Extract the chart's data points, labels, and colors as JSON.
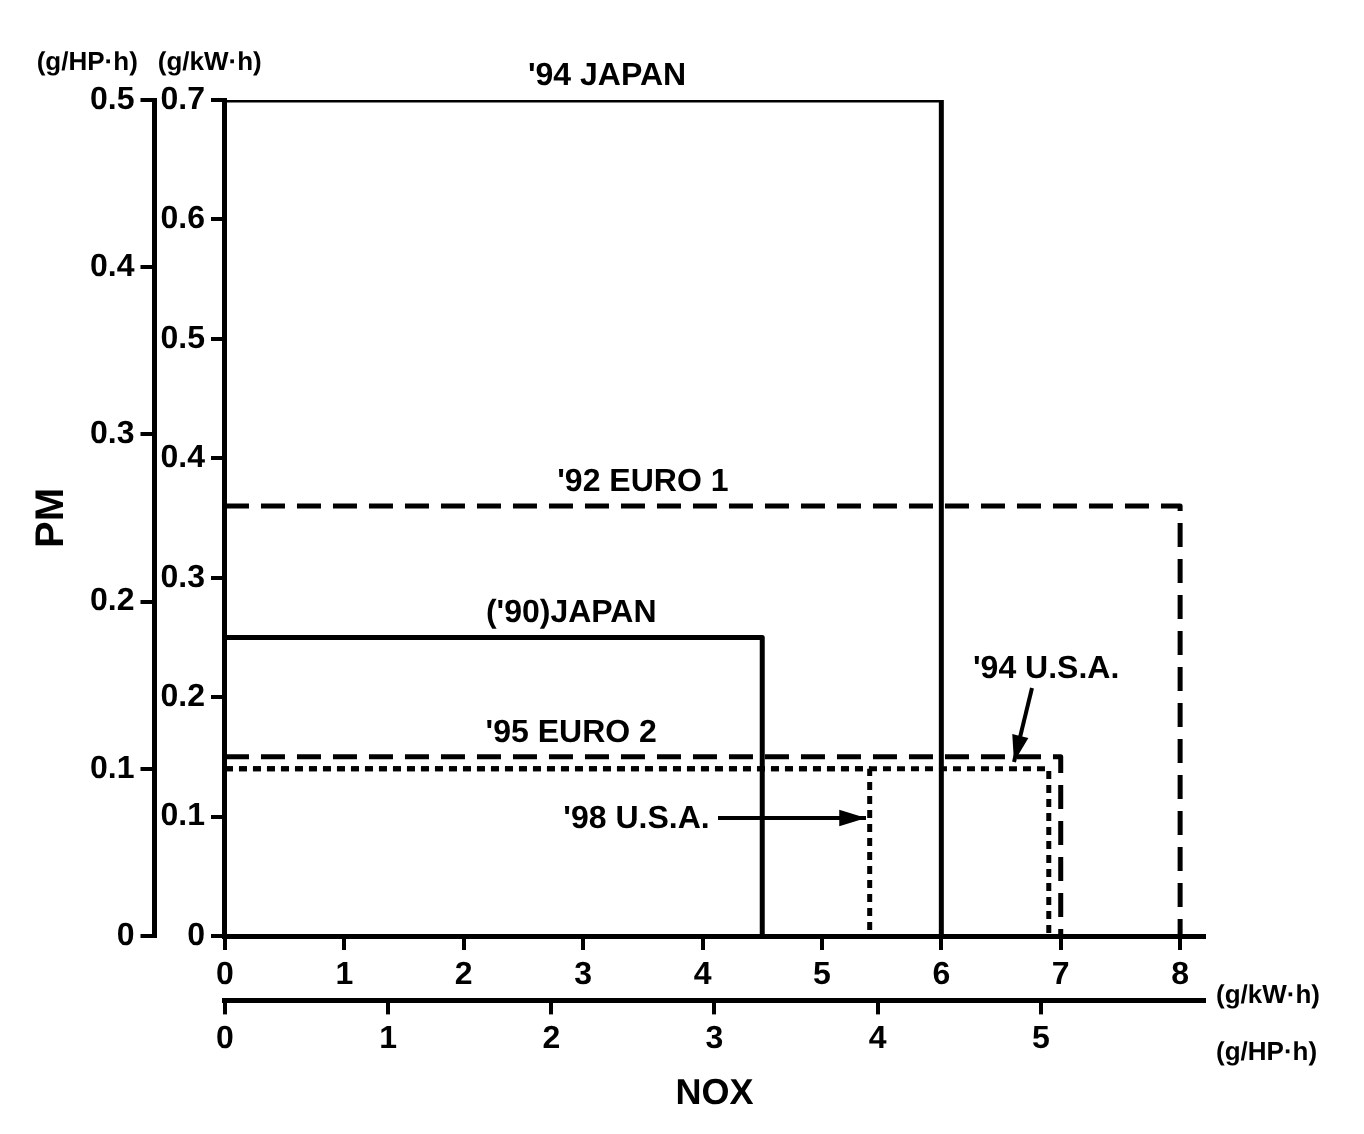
{
  "chart_data": {
    "type": "line",
    "xlabel": "NOX",
    "y2label": "PM",
    "xlim": [
      0,
      8.2
    ],
    "xticks": [
      0,
      1,
      2,
      3,
      4,
      5,
      6,
      7,
      8
    ],
    "x2lim": [
      0,
      6.0
    ],
    "x2ticks": [
      0,
      1,
      2,
      3,
      4,
      5
    ],
    "ylim": [
      0,
      0.7
    ],
    "yticks": [
      0,
      0.1,
      0.2,
      0.3,
      0.4,
      0.5,
      0.6,
      0.7
    ],
    "y2lim": [
      0,
      0.5
    ],
    "y2ticks": [
      0,
      0.1,
      0.2,
      0.3,
      0.4,
      0.5
    ],
    "marker": "none",
    "grid": false,
    "legend": false,
    "series": [
      {
        "color": "#000000",
        "line_style": "solid",
        "x": [
          0,
          6.0,
          6.0
        ],
        "values": [
          0.7,
          0.7,
          0
        ]
      },
      {
        "color": "#000000",
        "line_style": "dashed",
        "x": [
          0,
          8.0,
          8.0
        ],
        "values": [
          0.36,
          0.36,
          0
        ]
      },
      {
        "color": "#000000",
        "line_style": "solid",
        "x": [
          0,
          4.5,
          4.5
        ],
        "values": [
          0.25,
          0.25,
          0
        ]
      },
      {
        "color": "#000000",
        "line_style": "dashed",
        "x": [
          0,
          7.0,
          7.0
        ],
        "values": [
          0.15,
          0.15,
          0
        ]
      },
      {
        "color": "#000000",
        "line_style": "dotted",
        "x": [
          0,
          5.4,
          5.4
        ],
        "values": [
          0.14,
          0.14,
          0
        ]
      },
      {
        "color": "#000000",
        "line_style": "dotted",
        "x": [
          0,
          6.9,
          6.9
        ],
        "values": [
          0.14,
          0.14,
          0
        ]
      }
    ],
    "annotations": [
      {
        "text": "'94 JAPAN",
        "x": 3.2,
        "y": 0.7
      },
      {
        "text": "'92 EURO 1",
        "x": 3.5,
        "y": 0.36
      },
      {
        "text": "('90)JAPAN",
        "x": 2.9,
        "y": 0.25
      },
      {
        "text": "'95 EURO 2",
        "x": 2.9,
        "y": 0.15
      },
      {
        "text": "'94 U.S.A.",
        "x": 6.6,
        "y": 0.14
      },
      "(g/kW·h)",
      "(g/HP·h)",
      "(g/kW·h)",
      "(g/HP·h)",
      "'98 U.S.A."
    ]
  }
}
